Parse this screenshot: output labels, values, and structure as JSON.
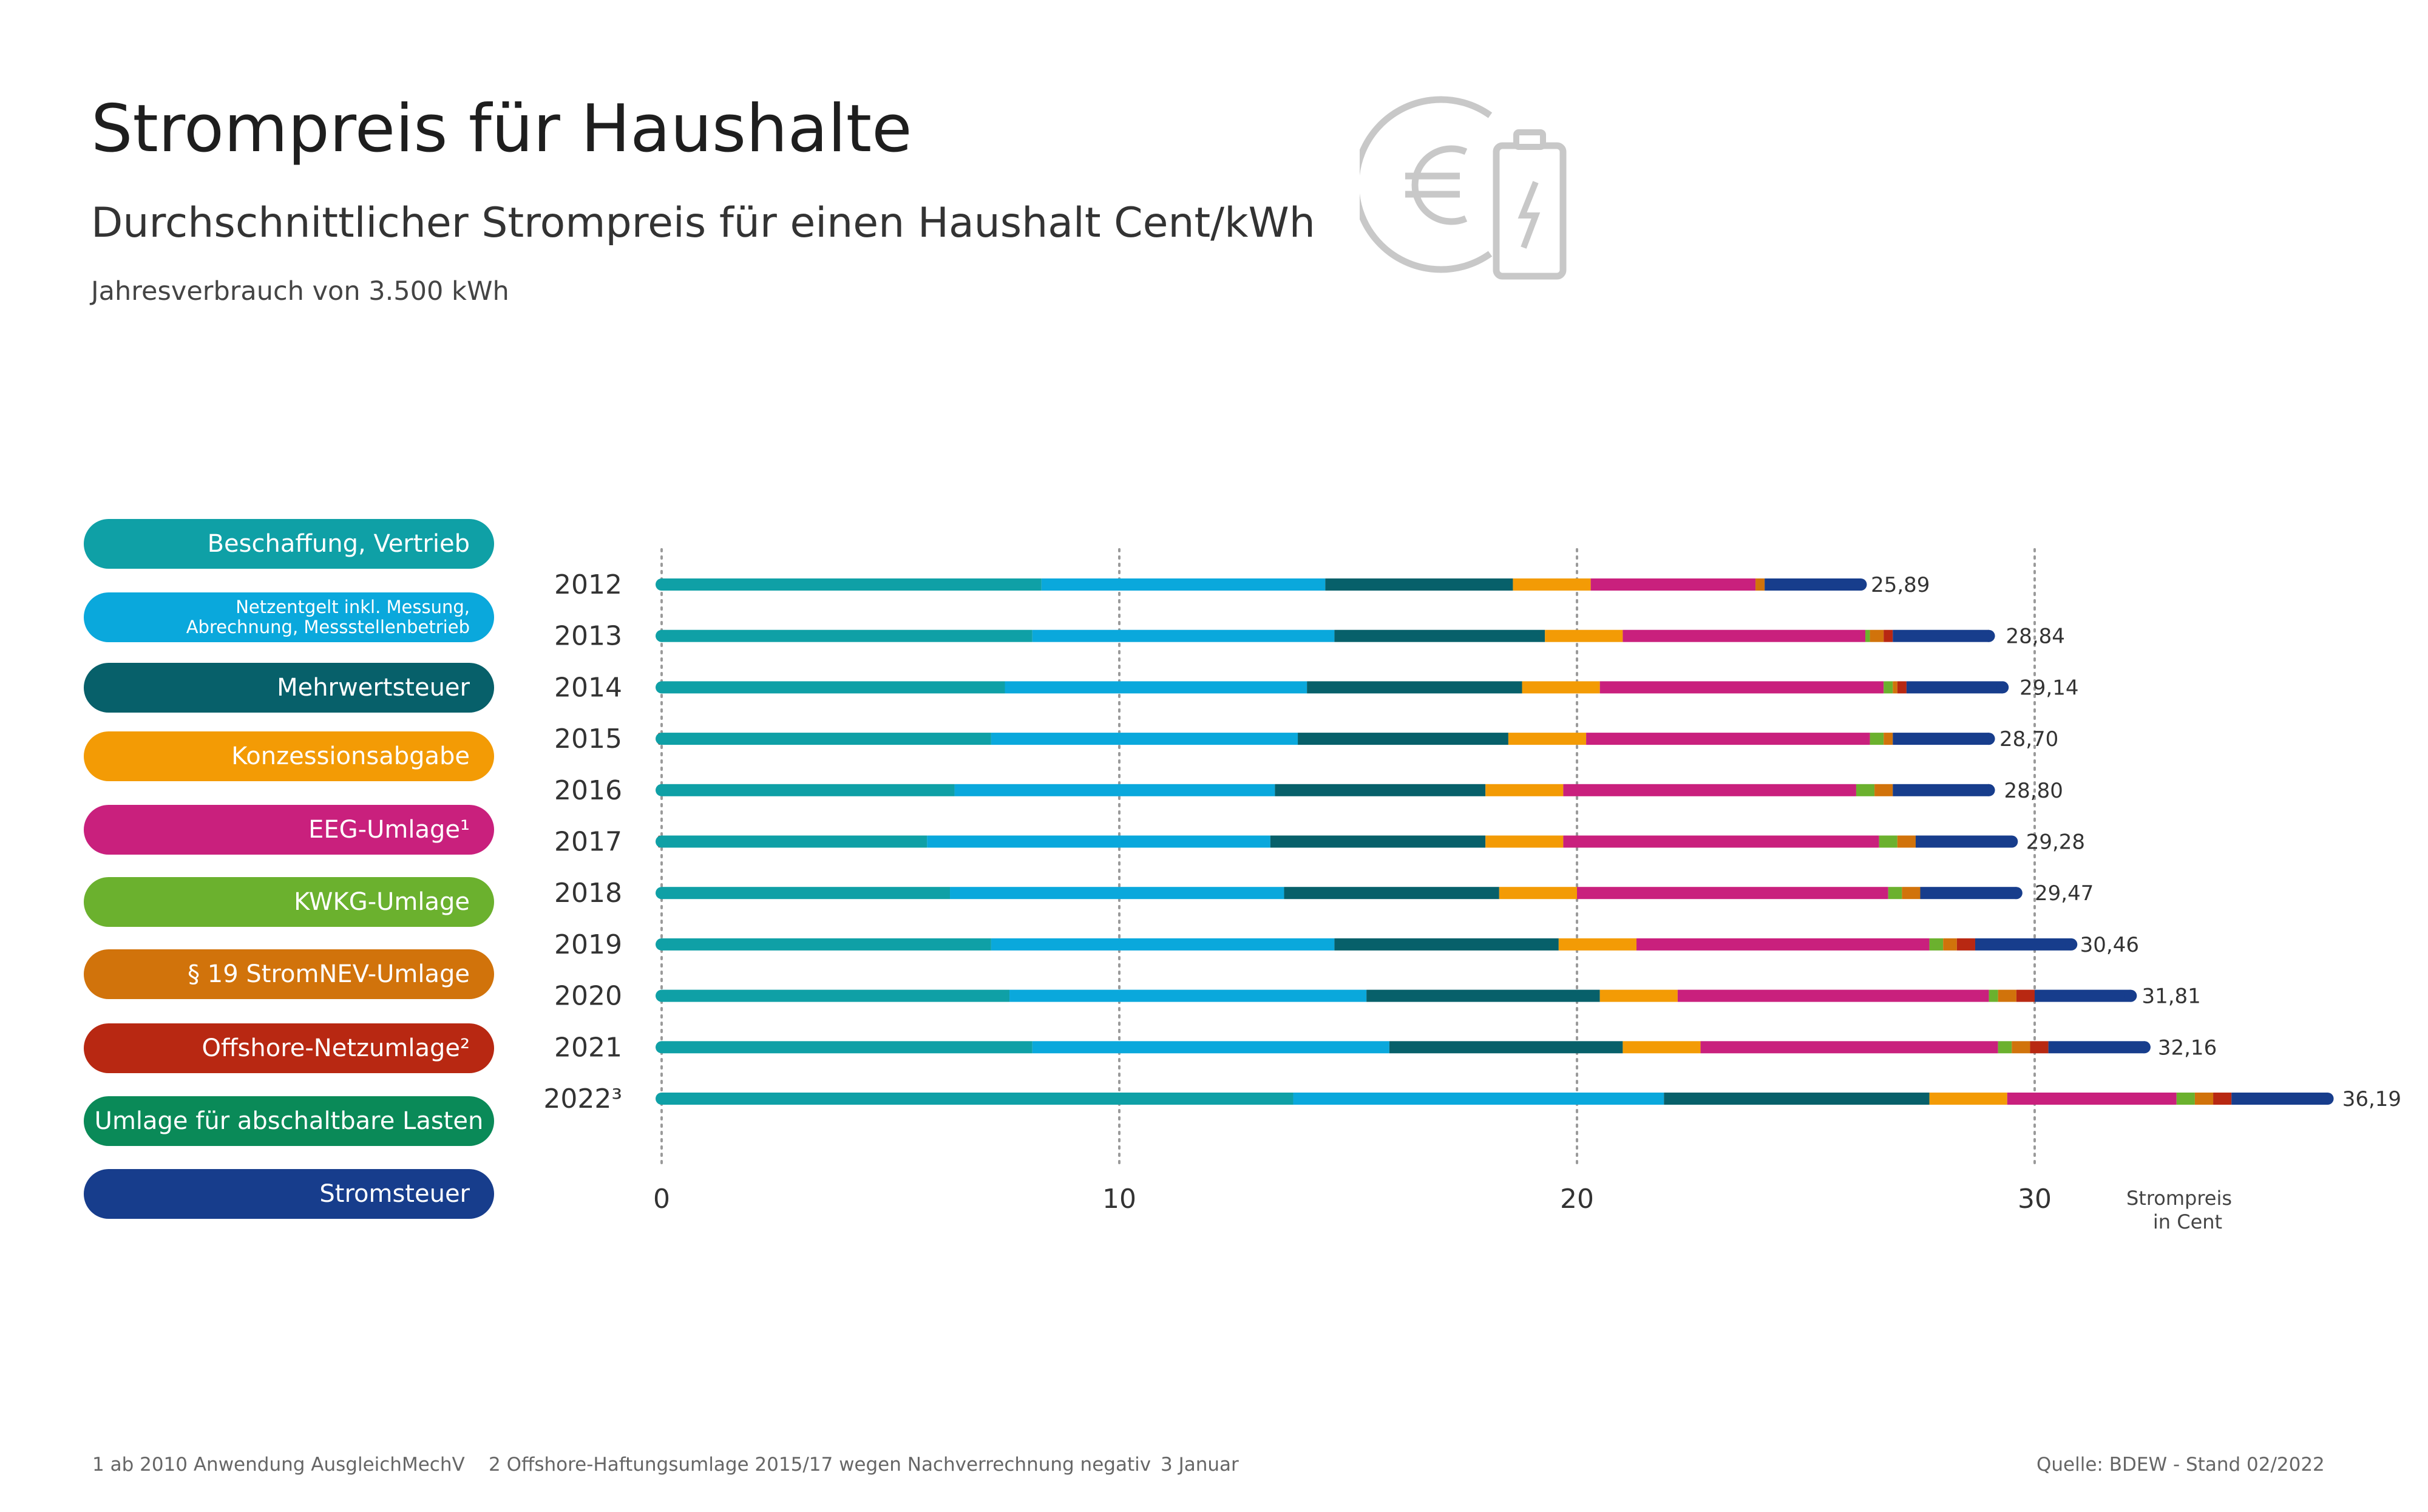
{
  "header": {
    "title": "Strompreis für Haushalte",
    "subtitle": "Durchschnittlicher Strompreis für einen Haushalt Cent/kWh",
    "note": "Jahresverbrauch von 3.500 kWh"
  },
  "legend": [
    {
      "label": "Beschaffung, Vertrieb",
      "color": "#0fa0a6"
    },
    {
      "label": "Netzentgelt inkl. Messung,",
      "label2": "Abrechnung, Messstellenbetrieb",
      "color": "#0aa8dc"
    },
    {
      "label": "Mehrwertsteuer",
      "color": "#07606a"
    },
    {
      "label": "Konzessionsabgabe",
      "color": "#f39b05"
    },
    {
      "label": "EEG-Umlage¹",
      "color": "#c9207d"
    },
    {
      "label": "KWKG-Umlage",
      "color": "#6bb12e"
    },
    {
      "label": "§ 19 StromNEV-Umlage",
      "color": "#d1730b"
    },
    {
      "label": "Offshore-Netzumlage²",
      "color": "#b82812"
    },
    {
      "label": "Umlage für abschaltbare Lasten",
      "color": "#0a8a58"
    },
    {
      "label": "Stromsteuer",
      "color": "#173d8c"
    }
  ],
  "chart_data": {
    "type": "bar",
    "orientation": "horizontal",
    "stacked": true,
    "categories": [
      "2012",
      "2013",
      "2014",
      "2015",
      "2016",
      "2017",
      "2018",
      "2019",
      "2020",
      "2021",
      "2022³"
    ],
    "series": [
      {
        "name": "Beschaffung, Vertrieb",
        "values": [
          8.3,
          8.1,
          7.5,
          7.2,
          6.4,
          5.8,
          6.3,
          7.2,
          7.6,
          8.1,
          13.8
        ]
      },
      {
        "name": "Netzentgelt inkl. Messung, Abrechnung, Messstellenbetrieb",
        "values": [
          6.2,
          6.6,
          6.6,
          6.7,
          7.0,
          7.5,
          7.3,
          7.5,
          7.8,
          7.8,
          8.1
        ]
      },
      {
        "name": "Mehrwertsteuer",
        "values": [
          4.1,
          4.6,
          4.7,
          4.6,
          4.6,
          4.7,
          4.7,
          4.9,
          5.1,
          5.1,
          5.8
        ]
      },
      {
        "name": "Konzessionsabgabe",
        "values": [
          1.7,
          1.7,
          1.7,
          1.7,
          1.7,
          1.7,
          1.7,
          1.7,
          1.7,
          1.7,
          1.7
        ]
      },
      {
        "name": "EEG-Umlage¹",
        "values": [
          3.6,
          5.3,
          6.2,
          6.2,
          6.4,
          6.9,
          6.8,
          6.4,
          6.8,
          6.5,
          3.7
        ]
      },
      {
        "name": "KWKG-Umlage",
        "values": [
          0.0,
          0.1,
          0.2,
          0.3,
          0.4,
          0.4,
          0.3,
          0.3,
          0.2,
          0.3,
          0.4
        ]
      },
      {
        "name": "§ 19 StromNEV-Umlage",
        "values": [
          0.2,
          0.3,
          0.1,
          0.2,
          0.4,
          0.4,
          0.4,
          0.3,
          0.4,
          0.4,
          0.4
        ]
      },
      {
        "name": "Offshore-Netzumlage²",
        "values": [
          0.0,
          0.2,
          0.2,
          -0.1,
          0.0,
          -0.1,
          0.0,
          0.4,
          0.4,
          0.4,
          0.4
        ]
      },
      {
        "name": "Umlage für abschaltbare Lasten",
        "values": [
          0.0,
          0.0,
          0.0,
          0.0,
          0.0,
          0.0,
          0.0,
          0.0,
          0.0,
          0.0,
          0.0
        ]
      },
      {
        "name": "Stromsteuer",
        "values": [
          2.1,
          2.1,
          2.1,
          2.1,
          2.1,
          2.1,
          2.1,
          2.1,
          2.1,
          2.1,
          2.1
        ]
      }
    ],
    "totals": [
      25.89,
      28.84,
      29.14,
      28.7,
      28.8,
      29.28,
      29.47,
      30.46,
      31.81,
      32.16,
      36.19
    ],
    "total_labels": [
      "25,89",
      "28,84",
      "29,14",
      "28,70",
      "28,80",
      "29,28",
      "29,47",
      "30,46",
      "31,81",
      "32,16",
      "36,19"
    ],
    "xticks": [
      0,
      10,
      20,
      30
    ],
    "xlim": [
      0,
      37
    ],
    "xlabel_line1": "Strompreis",
    "xlabel_line2": "in Cent",
    "grid": "vertical dotted"
  },
  "footer": {
    "note1": "1 ab 2010 Anwendung AusgleichMechV",
    "note2": "2 Offshore-Haftungsumlage 2015/17 wegen Nachverrechnung negativ",
    "note3": "3 Januar",
    "source": "Quelle: BDEW - Stand 02/2022"
  },
  "icons": {
    "header_icon": "euro-battery-icon",
    "icon_color": "#c8c8c8"
  }
}
